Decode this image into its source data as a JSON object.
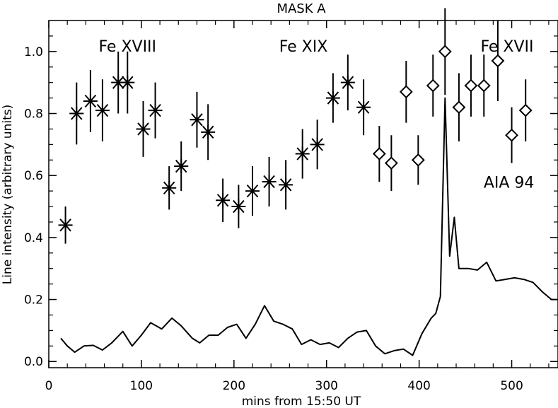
{
  "chart_data": {
    "type": "scatter",
    "title": "MASK A",
    "xlabel": "mins from 15:50 UT",
    "ylabel": "Line intensity (arbitrary units)",
    "xlim": [
      0,
      550
    ],
    "ylim": [
      -0.02,
      1.1
    ],
    "x_ticks": [
      0,
      100,
      200,
      300,
      400,
      500
    ],
    "x_tick_labels": [
      "0",
      "100",
      "200",
      "300",
      "400",
      "500"
    ],
    "y_ticks": [
      0.0,
      0.2,
      0.4,
      0.6,
      0.8,
      1.0
    ],
    "y_tick_labels": [
      "0.0",
      "0.2",
      "0.4",
      "0.6",
      "0.8",
      "1.0"
    ],
    "annotations": [
      {
        "text": "Fe XVIII",
        "x": 85,
        "y": 1.0
      },
      {
        "text": "Fe XIX",
        "x": 275,
        "y": 1.0
      },
      {
        "text": "Fe XVII",
        "x": 495,
        "y": 1.0
      },
      {
        "text": "AIA 94",
        "x": 497,
        "y": 0.56
      }
    ],
    "series": [
      {
        "name": "Fe XVIII",
        "marker": "asterisk",
        "x": [
          18,
          30,
          45,
          58,
          75,
          85,
          102,
          115,
          130,
          143,
          160,
          172,
          188,
          205,
          220,
          238,
          256,
          274,
          290,
          307,
          323,
          340
        ],
        "y": [
          0.44,
          0.8,
          0.84,
          0.81,
          0.9,
          0.9,
          0.75,
          0.81,
          0.56,
          0.63,
          0.78,
          0.74,
          0.52,
          0.5,
          0.55,
          0.58,
          0.57,
          0.67,
          0.7,
          0.85,
          0.9,
          0.82
        ],
        "err": [
          0.06,
          0.1,
          0.1,
          0.1,
          0.1,
          0.1,
          0.09,
          0.09,
          0.07,
          0.08,
          0.09,
          0.09,
          0.07,
          0.07,
          0.08,
          0.08,
          0.08,
          0.08,
          0.08,
          0.08,
          0.09,
          0.09
        ]
      },
      {
        "name": "Fe XVII",
        "marker": "diamond",
        "x": [
          357,
          370,
          386,
          399,
          415,
          428,
          443,
          456,
          470,
          485,
          500,
          515
        ],
        "y": [
          0.67,
          0.64,
          0.87,
          0.65,
          0.89,
          1.0,
          0.82,
          0.89,
          0.89,
          0.97,
          0.73,
          0.81
        ],
        "err": [
          0.09,
          0.09,
          0.1,
          0.08,
          0.1,
          0.14,
          0.11,
          0.1,
          0.1,
          0.13,
          0.09,
          0.1
        ]
      },
      {
        "name": "AIA 94",
        "marker": "line",
        "x": [
          13,
          20,
          28,
          38,
          48,
          58,
          68,
          80,
          90,
          100,
          110,
          122,
          133,
          143,
          155,
          163,
          173,
          183,
          193,
          203,
          213,
          223,
          233,
          243,
          253,
          263,
          273,
          283,
          293,
          303,
          313,
          323,
          333,
          343,
          353,
          363,
          373,
          383,
          393,
          403,
          413,
          418,
          423,
          428,
          433,
          438,
          443,
          453,
          463,
          473,
          483,
          493,
          503,
          513,
          523,
          533,
          543,
          550
        ],
        "y": [
          0.075,
          0.05,
          0.03,
          0.05,
          0.052,
          0.037,
          0.06,
          0.097,
          0.05,
          0.085,
          0.125,
          0.105,
          0.14,
          0.115,
          0.075,
          0.06,
          0.085,
          0.085,
          0.11,
          0.12,
          0.075,
          0.12,
          0.18,
          0.13,
          0.12,
          0.105,
          0.055,
          0.07,
          0.055,
          0.06,
          0.045,
          0.075,
          0.095,
          0.1,
          0.05,
          0.025,
          0.035,
          0.04,
          0.02,
          0.09,
          0.14,
          0.155,
          0.21,
          0.85,
          0.34,
          0.465,
          0.3,
          0.3,
          0.295,
          0.32,
          0.26,
          0.265,
          0.27,
          0.265,
          0.255,
          0.225,
          0.2,
          0.2
        ]
      }
    ]
  }
}
